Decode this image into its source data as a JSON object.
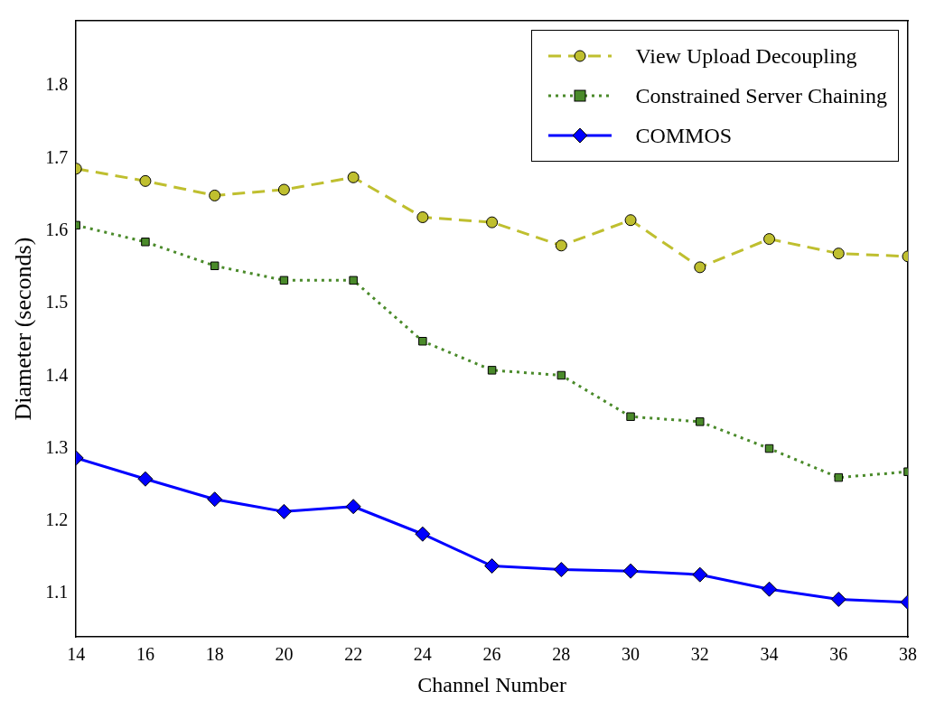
{
  "chart_data": {
    "type": "line",
    "xlabel": "Channel Number",
    "ylabel": "Diameter (seconds)",
    "x": [
      14,
      16,
      18,
      20,
      22,
      24,
      26,
      28,
      30,
      32,
      34,
      36,
      38
    ],
    "xlim": [
      14,
      38
    ],
    "xticks": [
      14,
      16,
      18,
      20,
      22,
      24,
      26,
      28,
      30,
      32,
      34,
      36,
      38
    ],
    "ylim": [
      1.04,
      1.89
    ],
    "yticks": [
      1.1,
      1.2,
      1.3,
      1.4,
      1.5,
      1.6,
      1.7,
      1.8
    ],
    "grid": false,
    "legend": "top right",
    "series": [
      {
        "name": "View Upload Decoupling",
        "color": "#bfbf2f",
        "marker": "circle",
        "line_style": "dashed",
        "values": [
          1.686,
          1.669,
          1.649,
          1.657,
          1.674,
          1.619,
          1.612,
          1.58,
          1.615,
          1.55,
          1.589,
          1.569,
          1.565
        ]
      },
      {
        "name": "Constrained Server Chaining",
        "color": "#4a8a2a",
        "marker": "square",
        "line_style": "dotted",
        "values": [
          1.608,
          1.585,
          1.552,
          1.532,
          1.532,
          1.448,
          1.408,
          1.401,
          1.344,
          1.337,
          1.3,
          1.26,
          1.268
        ]
      },
      {
        "name": "COMMOS",
        "color": "#0000ff",
        "marker": "diamond",
        "line_style": "solid",
        "values": [
          1.287,
          1.258,
          1.23,
          1.213,
          1.22,
          1.182,
          1.138,
          1.133,
          1.131,
          1.126,
          1.106,
          1.092,
          1.088
        ]
      }
    ]
  }
}
